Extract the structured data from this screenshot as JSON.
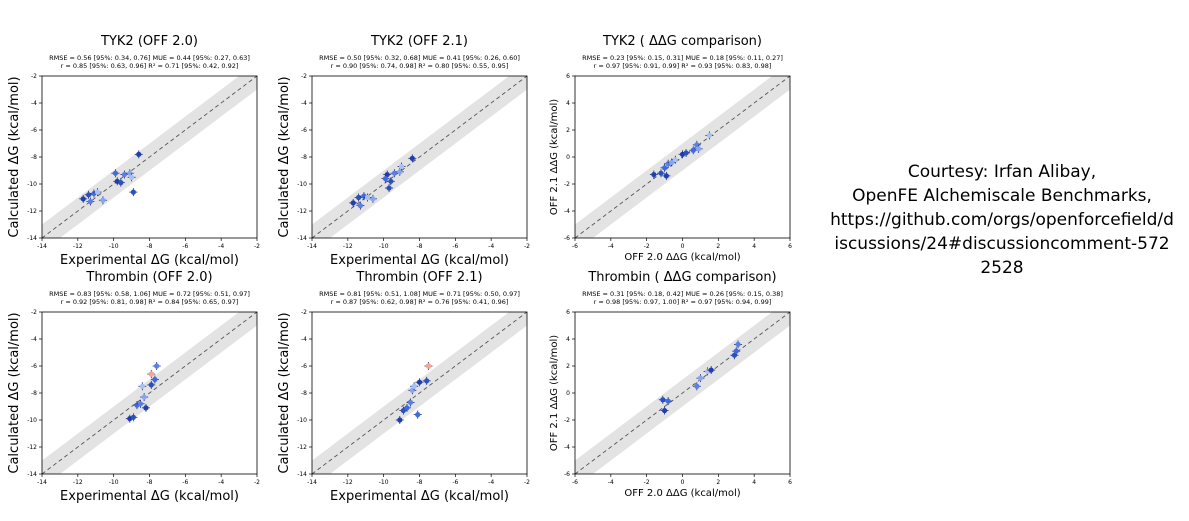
{
  "courtesy": {
    "line1": "Courtesy: Irfan Alibay,",
    "line2": "OpenFE Alchemiscale Benchmarks,",
    "line3": "https://github.com/orgs/openforcefield/d",
    "line4": "iscussions/24#discussioncomment-572",
    "line5": "2528"
  },
  "colors": {
    "band": "#e3e3e3",
    "diagonal": "#555555",
    "points": [
      "#1f3fb0",
      "#2a52be",
      "#4169e1",
      "#5b7fe6",
      "#86a6f0",
      "#a8c0f5",
      "#f4a596"
    ]
  },
  "chart_data": [
    {
      "type": "scatter",
      "title": "TYK2 (OFF 2.0)",
      "stats_line1": "RMSE = 0.56 [95%: 0.34, 0.76] MUE = 0.44 [95%: 0.27, 0.63]",
      "stats_line2": "r = 0.85 [95%: 0.63, 0.96]    R² = 0.71 [95%: 0.42, 0.92]",
      "xlabel": "Experimental  ΔG (kcal/mol)",
      "ylabel": "Calculated  ΔG (kcal/mol)",
      "xlim": [
        -14,
        -2
      ],
      "ylim": [
        -14,
        -2
      ],
      "xticks": [
        "-14",
        "-12",
        "-10",
        "-8",
        "-6",
        "-4",
        "-2"
      ],
      "yticks": [
        "-14",
        "-12",
        "-10",
        "-8",
        "-6",
        "-4",
        "-2"
      ],
      "points": [
        {
          "x": -11.7,
          "y": -11.1
        },
        {
          "x": -11.4,
          "y": -10.8
        },
        {
          "x": -11.1,
          "y": -10.7
        },
        {
          "x": -11.3,
          "y": -11.3
        },
        {
          "x": -10.6,
          "y": -11.2
        },
        {
          "x": -10.9,
          "y": -10.6
        },
        {
          "x": -9.8,
          "y": -9.8
        },
        {
          "x": -9.6,
          "y": -9.9
        },
        {
          "x": -9.9,
          "y": -9.2
        },
        {
          "x": -9.4,
          "y": -9.3
        },
        {
          "x": -9.1,
          "y": -9.2
        },
        {
          "x": -9.0,
          "y": -9.5
        },
        {
          "x": -8.6,
          "y": -7.8
        },
        {
          "x": -8.9,
          "y": -10.6
        }
      ]
    },
    {
      "type": "scatter",
      "title": "TYK2 (OFF 2.1)",
      "stats_line1": "RMSE = 0.50 [95%: 0.32, 0.68] MUE = 0.41 [95%: 0.26, 0.60]",
      "stats_line2": "r = 0.90 [95%: 0.74, 0.98]    R² = 0.80 [95%: 0.55, 0.95]",
      "xlabel": "Experimental  ΔG (kcal/mol)",
      "ylabel": "Calculated  ΔG (kcal/mol)",
      "xlim": [
        -14,
        -2
      ],
      "ylim": [
        -14,
        -2
      ],
      "xticks": [
        "-14",
        "-12",
        "-10",
        "-8",
        "-6",
        "-4",
        "-2"
      ],
      "yticks": [
        "-14",
        "-12",
        "-10",
        "-8",
        "-6",
        "-4",
        "-2"
      ],
      "points": [
        {
          "x": -11.7,
          "y": -11.4
        },
        {
          "x": -11.4,
          "y": -11.0
        },
        {
          "x": -11.1,
          "y": -10.9
        },
        {
          "x": -11.3,
          "y": -11.6
        },
        {
          "x": -10.6,
          "y": -11.1
        },
        {
          "x": -10.9,
          "y": -11.0
        },
        {
          "x": -9.8,
          "y": -9.3
        },
        {
          "x": -9.6,
          "y": -9.8
        },
        {
          "x": -9.9,
          "y": -9.6
        },
        {
          "x": -9.4,
          "y": -9.2
        },
        {
          "x": -9.1,
          "y": -9.1
        },
        {
          "x": -9.0,
          "y": -8.7
        },
        {
          "x": -8.4,
          "y": -8.1
        },
        {
          "x": -9.7,
          "y": -10.3
        }
      ]
    },
    {
      "type": "scatter",
      "title": "TYK2 ( ΔΔG comparison)",
      "stats_line1": "RMSE = 0.23 [95%: 0.15, 0.31] MUE = 0.18 [95%: 0.11, 0.27]",
      "stats_line2": "r = 0.97 [95%: 0.91, 0.99]    R² = 0.93 [95%: 0.83, 0.98]",
      "xlabel": "OFF 2.0  ΔΔG (kcal/mol)",
      "ylabel": "OFF 2.1  ΔΔG (kcal/mol)",
      "xlim": [
        -6,
        6
      ],
      "ylim": [
        -6,
        6
      ],
      "xticks": [
        "-6",
        "-4",
        "-2",
        "0",
        "2",
        "4",
        "6"
      ],
      "yticks": [
        "-6",
        "-4",
        "-2",
        "0",
        "2",
        "4",
        "6"
      ],
      "points": [
        {
          "x": -1.6,
          "y": -1.3
        },
        {
          "x": -1.2,
          "y": -1.2
        },
        {
          "x": -1.0,
          "y": -0.8
        },
        {
          "x": -0.8,
          "y": -0.5
        },
        {
          "x": -0.6,
          "y": -0.4
        },
        {
          "x": -0.4,
          "y": -0.2
        },
        {
          "x": 0.0,
          "y": 0.2
        },
        {
          "x": 0.2,
          "y": 0.3
        },
        {
          "x": 0.6,
          "y": 0.5
        },
        {
          "x": 0.8,
          "y": 0.9
        },
        {
          "x": 0.9,
          "y": 0.6
        },
        {
          "x": 1.5,
          "y": 1.6
        },
        {
          "x": -0.9,
          "y": -1.4
        }
      ]
    },
    {
      "type": "scatter",
      "title": "Thrombin (OFF 2.0)",
      "stats_line1": "RMSE = 0.83 [95%: 0.58, 1.06] MUE = 0.72 [95%: 0.51, 0.97]",
      "stats_line2": "r = 0.92 [95%: 0.81, 0.98]    R² = 0.84 [95%: 0.65, 0.97]",
      "xlabel": "Experimental  ΔG (kcal/mol)",
      "ylabel": "Calculated  ΔG (kcal/mol)",
      "xlim": [
        -14,
        -2
      ],
      "ylim": [
        -14,
        -2
      ],
      "xticks": [
        "-14",
        "-12",
        "-10",
        "-8",
        "-6",
        "-4",
        "-2"
      ],
      "yticks": [
        "-14",
        "-12",
        "-10",
        "-8",
        "-6",
        "-4",
        "-2"
      ],
      "points": [
        {
          "x": -9.1,
          "y": -9.9
        },
        {
          "x": -8.9,
          "y": -9.8
        },
        {
          "x": -8.7,
          "y": -8.9
        },
        {
          "x": -8.5,
          "y": -8.8
        },
        {
          "x": -8.3,
          "y": -8.3
        },
        {
          "x": -8.4,
          "y": -7.5
        },
        {
          "x": -8.2,
          "y": -9.1
        },
        {
          "x": -7.9,
          "y": -7.4
        },
        {
          "x": -7.7,
          "y": -7.0
        },
        {
          "x": -7.6,
          "y": -6.0
        },
        {
          "x": -7.9,
          "y": -6.6
        }
      ]
    },
    {
      "type": "scatter",
      "title": "Thrombin (OFF 2.1)",
      "stats_line1": "RMSE = 0.81 [95%: 0.51, 1.08] MUE = 0.71 [95%: 0.50, 0.97]",
      "stats_line2": "r = 0.87 [95%: 0.62, 0.98]    R² = 0.76 [95%: 0.41, 0.96]",
      "xlabel": "Experimental  ΔG (kcal/mol)",
      "ylabel": "Calculated  ΔG (kcal/mol)",
      "xlim": [
        -14,
        -2
      ],
      "ylim": [
        -14,
        -2
      ],
      "xticks": [
        "-14",
        "-12",
        "-10",
        "-8",
        "-6",
        "-4",
        "-2"
      ],
      "yticks": [
        "-14",
        "-12",
        "-10",
        "-8",
        "-6",
        "-4",
        "-2"
      ],
      "points": [
        {
          "x": -9.1,
          "y": -10.0
        },
        {
          "x": -8.9,
          "y": -9.3
        },
        {
          "x": -8.7,
          "y": -9.1
        },
        {
          "x": -8.5,
          "y": -8.7
        },
        {
          "x": -8.4,
          "y": -7.8
        },
        {
          "x": -8.3,
          "y": -7.5
        },
        {
          "x": -8.0,
          "y": -7.2
        },
        {
          "x": -7.6,
          "y": -7.1
        },
        {
          "x": -8.1,
          "y": -9.6
        },
        {
          "x": -7.5,
          "y": -6.0
        }
      ]
    },
    {
      "type": "scatter",
      "title": "Thrombin ( ΔΔG comparison)",
      "stats_line1": "RMSE = 0.31 [95%: 0.18, 0.42] MUE = 0.26 [95%: 0.15, 0.38]",
      "stats_line2": "r = 0.98 [95%: 0.97, 1.00]    R² = 0.97 [95%: 0.94, 0.99]",
      "xlabel": "OFF 2.0  ΔΔG (kcal/mol)",
      "ylabel": "OFF 2.1  ΔΔG (kcal/mol)",
      "xlim": [
        -6,
        6
      ],
      "ylim": [
        -6,
        6
      ],
      "xticks": [
        "-6",
        "-4",
        "-2",
        "0",
        "2",
        "4",
        "6"
      ],
      "yticks": [
        "-6",
        "-4",
        "-2",
        "0",
        "2",
        "4",
        "6"
      ],
      "points": [
        {
          "x": -1.0,
          "y": -1.3
        },
        {
          "x": -1.1,
          "y": -0.5
        },
        {
          "x": -0.8,
          "y": -0.6
        },
        {
          "x": 0.8,
          "y": 0.5
        },
        {
          "x": 1.0,
          "y": 1.1
        },
        {
          "x": 1.4,
          "y": 1.6
        },
        {
          "x": 1.6,
          "y": 1.7
        },
        {
          "x": 2.9,
          "y": 2.8
        },
        {
          "x": 3.0,
          "y": 3.1
        },
        {
          "x": 3.1,
          "y": 3.6
        }
      ]
    }
  ]
}
